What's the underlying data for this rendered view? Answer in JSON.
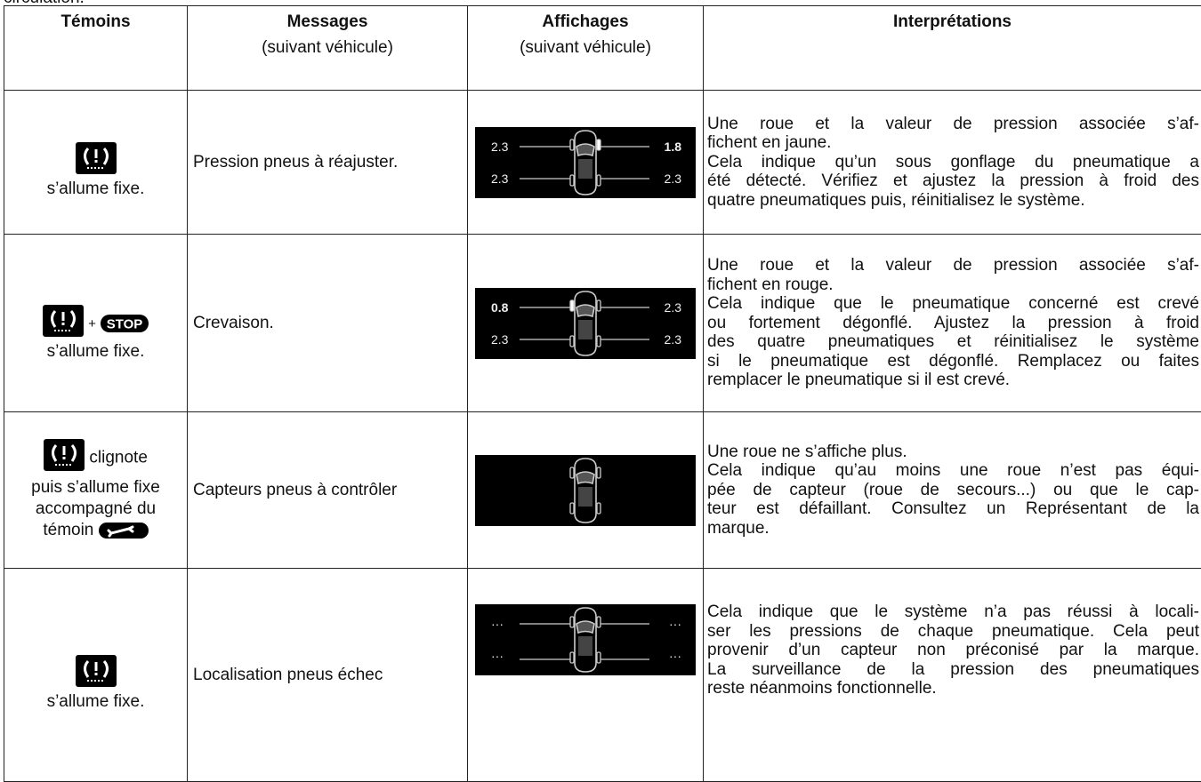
{
  "top_text": "circulation.",
  "table": {
    "headers": [
      {
        "title": "Témoins"
      },
      {
        "title": "Messages",
        "subtitle": "(suivant véhicule)"
      },
      {
        "title": "Affichages",
        "subtitle": "(suivant véhicule)"
      },
      {
        "title": "Interprétations"
      }
    ],
    "rows": [
      {
        "temoin": {
          "lines": [
            "s’allume fixe."
          ]
        },
        "message": "Pression pneus à réajuster.",
        "display": {
          "values": [
            "2.3",
            "1.8",
            "2.3",
            "2.3"
          ],
          "highlight": 1
        },
        "interpretation": [
          [
            "Une roue et la valeur de pression associée s’af-",
            "fichent en jaune."
          ],
          [
            "Cela indique qu’un sous gonflage du pneumatique a",
            "été détecté. Vérifiez et ajustez la pression à froid des",
            "quatre pneumatiques puis, réinitialisez le système."
          ]
        ]
      },
      {
        "temoin": {
          "plus": "+",
          "stop": "STOP",
          "lines": [
            "s’allume fixe."
          ]
        },
        "message": "Crevaison.",
        "display": {
          "values": [
            "0.8",
            "2.3",
            "2.3",
            "2.3"
          ],
          "highlight": 0
        },
        "interpretation": [
          [
            "Une roue et la valeur de pression associée s’af-",
            "fichent en rouge."
          ],
          [
            "Cela indique que le pneumatique concerné est crevé",
            "ou fortement dégonflé. Ajustez la pression à froid",
            "des quatre pneumatiques et réinitialisez le système",
            "si le pneumatique est dégonflé. Remplacez ou faites",
            "remplacer le pneumatique si il est crevé."
          ]
        ]
      },
      {
        "temoin": {
          "inline": "clignote",
          "lines": [
            "puis s’allume fixe",
            "accompagné du",
            "témoin"
          ]
        },
        "message": "Capteurs pneus à contrôler",
        "display": {
          "values": []
        },
        "interpretation": [
          [
            "Une roue ne s’affiche plus."
          ],
          [
            "Cela indique qu’au moins une roue n’est pas équi-",
            "pée de capteur (roue de secours...) ou que le cap-",
            "teur est défaillant. Consultez un Représentant de la",
            "marque."
          ]
        ]
      },
      {
        "temoin": {
          "lines": [
            "s’allume fixe."
          ]
        },
        "message": "Localisation pneus échec",
        "display": {
          "values": [
            "···",
            "···",
            "···",
            "···"
          ]
        },
        "interpretation": [
          [
            "Cela indique que le système n’a pas réussi à locali-",
            "ser les pressions de chaque pneumatique. Cela peut",
            "provenir d’un capteur non préconisé par la marque.",
            "La surveillance de la pression des pneumatiques",
            "reste néanmoins fonctionnelle."
          ]
        ]
      }
    ]
  }
}
